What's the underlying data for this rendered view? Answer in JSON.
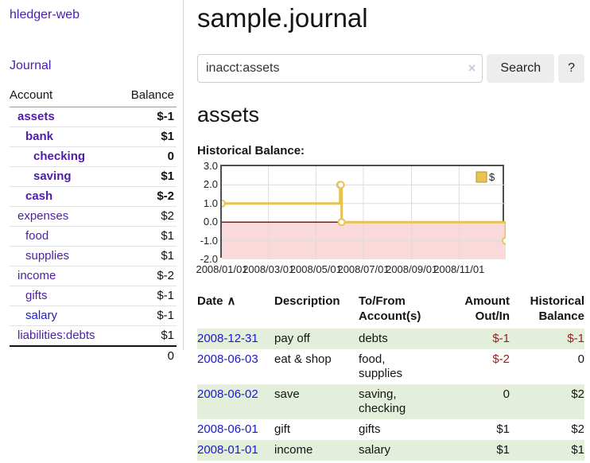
{
  "app": {
    "title": "hledger-web",
    "nav_journal": "Journal"
  },
  "sidebar": {
    "header": {
      "account": "Account",
      "balance": "Balance"
    },
    "accounts": [
      {
        "label": "assets",
        "balance": "$-1",
        "indent": 1,
        "bold": true,
        "balance_style": "neg-strong",
        "link_color": "purple"
      },
      {
        "label": "bank",
        "balance": "$1",
        "indent": 2,
        "bold": true,
        "balance_style": "pos",
        "link_color": "purple"
      },
      {
        "label": "checking",
        "balance": "0",
        "indent": 3,
        "bold": true,
        "balance_style": "pos",
        "link_color": "purple"
      },
      {
        "label": "saving",
        "balance": "$1",
        "indent": 3,
        "bold": true,
        "balance_style": "pos",
        "link_color": "purple"
      },
      {
        "label": "cash",
        "balance": "$-2",
        "indent": 2,
        "bold": true,
        "balance_style": "neg-strong",
        "link_color": "purple"
      },
      {
        "label": "expenses",
        "balance": "$2",
        "indent": 1,
        "bold": false,
        "balance_style": "pos",
        "link_color": "purple"
      },
      {
        "label": "food",
        "balance": "$1",
        "indent": 2,
        "bold": false,
        "balance_style": "pos",
        "link_color": "purple"
      },
      {
        "label": "supplies",
        "balance": "$1",
        "indent": 2,
        "bold": false,
        "balance_style": "pos",
        "link_color": "purple"
      },
      {
        "label": "income",
        "balance": "$-2",
        "indent": 1,
        "bold": false,
        "balance_style": "neg-soft",
        "link_color": "purple"
      },
      {
        "label": "gifts",
        "balance": "$-1",
        "indent": 2,
        "bold": false,
        "balance_style": "neg-soft",
        "link_color": "purple"
      },
      {
        "label": "salary",
        "balance": "$-1",
        "indent": 2,
        "bold": false,
        "balance_style": "neg-soft",
        "link_color": "blue"
      },
      {
        "label": "liabilities:debts",
        "balance": "$1",
        "indent": 1,
        "bold": false,
        "balance_style": "pos",
        "link_color": "purple"
      }
    ],
    "total": "0"
  },
  "main": {
    "title": "sample.journal",
    "search": {
      "value": "inacct:assets",
      "clear_icon": "×",
      "button": "Search",
      "help_button": "?"
    },
    "account_heading": "assets",
    "chart_label": "Historical Balance:"
  },
  "chart_data": {
    "type": "line",
    "title": "Historical Balance",
    "step": true,
    "series": [
      {
        "name": "$",
        "points_date_value": [
          [
            "2008-01-01",
            1
          ],
          [
            "2008-06-01",
            2
          ],
          [
            "2008-06-02",
            2
          ],
          [
            "2008-06-03",
            0
          ],
          [
            "2008-12-31",
            -1
          ]
        ],
        "point_days": [
          0,
          152,
          153,
          154,
          365
        ]
      }
    ],
    "ylim": [
      -2,
      3
    ],
    "yticks": [
      3,
      2,
      1,
      0,
      -1,
      -2
    ],
    "ytick_labels": [
      "3.0",
      "2.0",
      "1.0",
      "0.0",
      "-1.0",
      "-2.0"
    ],
    "xticks": [
      {
        "day": 0,
        "label": "2008/01/01"
      },
      {
        "day": 60,
        "label": "2008/03/01"
      },
      {
        "day": 121,
        "label": "2008/05/01"
      },
      {
        "day": 182,
        "label": "2008/07/01"
      },
      {
        "day": 244,
        "label": "2008/09/01"
      },
      {
        "day": 305,
        "label": "2008/11/01"
      }
    ],
    "x_range_days": 365,
    "grid": true,
    "legend_position": "top-right",
    "line_color": "#e8c351",
    "marker_fill": "#ffffff",
    "legend_border": "#b8952e",
    "negative_fill": "#f9d9d9",
    "zero_line_color": "#8f1010",
    "grid_color": "#dcdcdc"
  },
  "register": {
    "headers": {
      "date": "Date",
      "sort_icon": "∧",
      "description": "Description",
      "accounts": "To/From Account(s)",
      "amount": "Amount Out/In",
      "balance": "Historical Balance"
    },
    "rows": [
      {
        "date": "2008-12-31",
        "description": "pay off",
        "accounts": "debts",
        "amount": "$-1",
        "balance": "$-1",
        "amount_neg": true,
        "balance_neg": true,
        "green": true
      },
      {
        "date": "2008-06-03",
        "description": "eat & shop",
        "accounts": "food, supplies",
        "amount": "$-2",
        "balance": "0",
        "amount_neg": true,
        "balance_neg": false,
        "green": false
      },
      {
        "date": "2008-06-02",
        "description": "save",
        "accounts": "saving, checking",
        "amount": "0",
        "balance": "$2",
        "amount_neg": false,
        "balance_neg": false,
        "green": true
      },
      {
        "date": "2008-06-01",
        "description": "gift",
        "accounts": "gifts",
        "amount": "$1",
        "balance": "$2",
        "amount_neg": false,
        "balance_neg": false,
        "green": false
      },
      {
        "date": "2008-01-01",
        "description": "income",
        "accounts": "salary",
        "amount": "$1",
        "balance": "$1",
        "amount_neg": false,
        "balance_neg": false,
        "green": true
      }
    ]
  }
}
